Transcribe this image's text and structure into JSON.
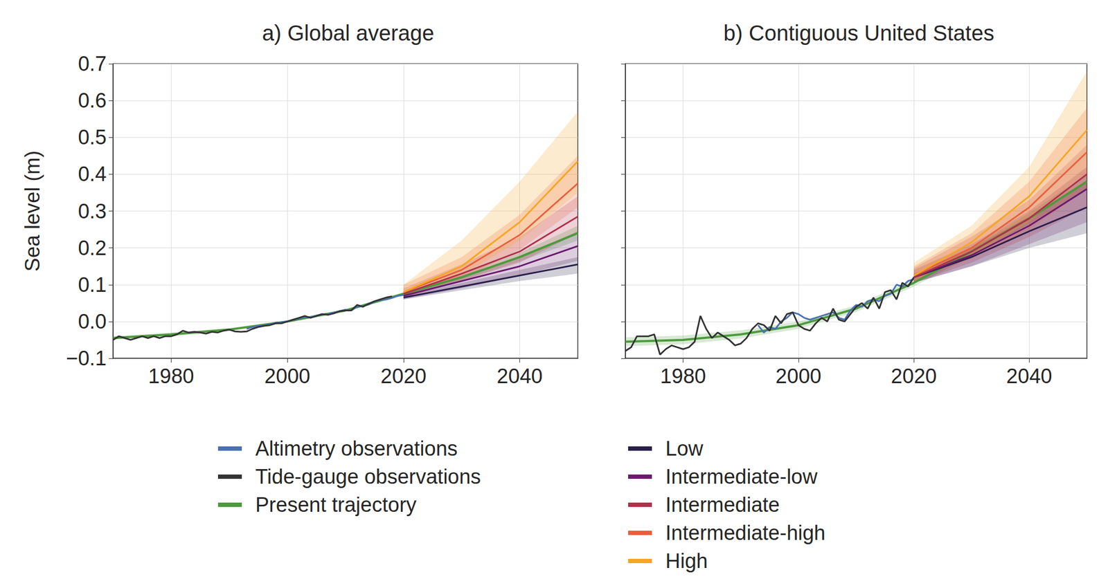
{
  "chart_data": [
    {
      "type": "line",
      "title": "a) Global average",
      "y_label": "Sea level (m)",
      "xlim": [
        1970,
        2050
      ],
      "xticks": [
        1980,
        2000,
        2020,
        2040
      ],
      "ylim": [
        -0.1,
        0.7
      ],
      "yticks": [
        {
          "value": -0.1,
          "label": "−0.1"
        },
        {
          "value": 0,
          "label": "0.0"
        },
        0.1,
        0.2,
        0.3,
        0.4,
        0.5,
        0.6,
        0.7
      ],
      "grid": true,
      "legend": "bottom",
      "series": [
        {
          "name": "Altimetry observations",
          "color": "#4a72b0",
          "x": [
            1993,
            1994,
            1995,
            1996,
            1997,
            1998,
            1999,
            2000,
            2001,
            2002,
            2003,
            2004,
            2005,
            2006,
            2007,
            2008,
            2009,
            2010,
            2011,
            2012,
            2013,
            2014,
            2015,
            2016,
            2017,
            2018,
            2019,
            2020
          ],
          "values": [
            -0.02,
            -0.015,
            -0.012,
            -0.01,
            -0.008,
            -0.003,
            -0.002,
            0.0,
            0.005,
            0.008,
            0.012,
            0.012,
            0.016,
            0.02,
            0.02,
            0.024,
            0.028,
            0.032,
            0.03,
            0.04,
            0.042,
            0.046,
            0.054,
            0.058,
            0.06,
            0.064,
            0.07,
            0.072
          ]
        },
        {
          "name": "Tide-gauge observations",
          "color": "#333333",
          "x": [
            1970,
            1971,
            1972,
            1973,
            1974,
            1975,
            1976,
            1977,
            1978,
            1979,
            1980,
            1981,
            1982,
            1983,
            1984,
            1985,
            1986,
            1987,
            1988,
            1989,
            1990,
            1991,
            1992,
            1993,
            1994,
            1995,
            1996,
            1997,
            1998,
            1999,
            2000,
            2001,
            2002,
            2003,
            2004,
            2005,
            2006,
            2007,
            2008,
            2009,
            2010,
            2011,
            2012,
            2013,
            2014,
            2015,
            2016,
            2017,
            2018
          ],
          "values": [
            -0.05,
            -0.04,
            -0.045,
            -0.05,
            -0.045,
            -0.04,
            -0.045,
            -0.04,
            -0.045,
            -0.04,
            -0.04,
            -0.035,
            -0.025,
            -0.03,
            -0.028,
            -0.03,
            -0.033,
            -0.028,
            -0.03,
            -0.025,
            -0.022,
            -0.027,
            -0.028,
            -0.027,
            -0.02,
            -0.015,
            -0.012,
            -0.01,
            -0.005,
            -0.005,
            0.0,
            0.005,
            0.01,
            0.015,
            0.01,
            0.015,
            0.02,
            0.018,
            0.022,
            0.028,
            0.03,
            0.03,
            0.045,
            0.04,
            0.048,
            0.055,
            0.06,
            0.065,
            0.068
          ]
        },
        {
          "name": "Present trajectory",
          "color": "#4c9a3c",
          "x": [
            1970,
            1980,
            1990,
            2000,
            2010,
            2020,
            2030,
            2040,
            2050
          ],
          "values": [
            -0.045,
            -0.035,
            -0.022,
            0.0,
            0.03,
            0.075,
            0.12,
            0.175,
            0.24
          ],
          "lower": [
            -0.05,
            -0.04,
            -0.026,
            -0.003,
            0.027,
            0.07,
            0.112,
            0.163,
            0.22
          ],
          "upper": [
            -0.04,
            -0.03,
            -0.018,
            0.003,
            0.033,
            0.08,
            0.128,
            0.187,
            0.26
          ]
        },
        {
          "name": "Low",
          "color": "#2a1f4a",
          "x": [
            2020,
            2030,
            2040,
            2050
          ],
          "values": [
            0.065,
            0.095,
            0.125,
            0.155
          ],
          "lower": [
            0.06,
            0.085,
            0.11,
            0.13
          ],
          "upper": [
            0.07,
            0.105,
            0.14,
            0.175
          ]
        },
        {
          "name": "Intermediate-low",
          "color": "#6a1b6e",
          "x": [
            2020,
            2030,
            2040,
            2050
          ],
          "values": [
            0.07,
            0.11,
            0.15,
            0.205
          ],
          "lower": [
            0.06,
            0.09,
            0.125,
            0.165
          ],
          "upper": [
            0.08,
            0.125,
            0.175,
            0.245
          ]
        },
        {
          "name": "Intermediate",
          "color": "#b0304a",
          "x": [
            2020,
            2030,
            2040,
            2050
          ],
          "values": [
            0.075,
            0.13,
            0.19,
            0.285
          ],
          "lower": [
            0.065,
            0.11,
            0.16,
            0.24
          ],
          "upper": [
            0.09,
            0.155,
            0.23,
            0.34
          ]
        },
        {
          "name": "Intermediate-high",
          "color": "#e8603c",
          "x": [
            2020,
            2030,
            2040,
            2050
          ],
          "values": [
            0.08,
            0.14,
            0.235,
            0.375
          ],
          "lower": [
            0.07,
            0.115,
            0.195,
            0.31
          ],
          "upper": [
            0.1,
            0.175,
            0.29,
            0.45
          ]
        },
        {
          "name": "High",
          "color": "#f5a623",
          "x": [
            2020,
            2030,
            2040,
            2050
          ],
          "values": [
            0.08,
            0.15,
            0.27,
            0.435
          ],
          "lower": [
            0.07,
            0.125,
            0.22,
            0.35
          ],
          "upper": [
            0.1,
            0.22,
            0.38,
            0.57
          ]
        }
      ]
    },
    {
      "type": "line",
      "title": "b) Contiguous United States",
      "tick_labels": "x",
      "xlim": [
        1970,
        2050
      ],
      "xticks": [
        1980,
        2000,
        2020,
        2040
      ],
      "ylim": [
        -0.1,
        0.7
      ],
      "yticks": [
        {
          "value": -0.1,
          "label": "−0.1"
        },
        {
          "value": 0,
          "label": "0.0"
        },
        0.1,
        0.2,
        0.3,
        0.4,
        0.5,
        0.6,
        0.7
      ],
      "grid": true,
      "series": [
        {
          "name": "Altimetry observations",
          "color": "#4a72b0",
          "x": [
            1993,
            1994,
            1995,
            1996,
            1997,
            1998,
            1999,
            2000,
            2001,
            2002,
            2003,
            2004,
            2005,
            2006,
            2007,
            2008,
            2009,
            2010,
            2011,
            2012,
            2013,
            2014,
            2015,
            2016,
            2017,
            2018,
            2019,
            2020
          ],
          "values": [
            -0.01,
            -0.03,
            -0.015,
            -0.02,
            0.0,
            0.01,
            0.025,
            0.02,
            0.01,
            0.005,
            0.01,
            0.015,
            0.02,
            0.025,
            0.01,
            0.005,
            0.03,
            0.045,
            0.04,
            0.055,
            0.06,
            0.055,
            0.07,
            0.075,
            0.1,
            0.095,
            0.11,
            0.115
          ]
        },
        {
          "name": "Tide-gauge observations",
          "color": "#333333",
          "x": [
            1970,
            1971,
            1972,
            1973,
            1974,
            1975,
            1976,
            1977,
            1978,
            1979,
            1980,
            1981,
            1982,
            1983,
            1984,
            1985,
            1986,
            1987,
            1988,
            1989,
            1990,
            1991,
            1992,
            1993,
            1994,
            1995,
            1996,
            1997,
            1998,
            1999,
            2000,
            2001,
            2002,
            2003,
            2004,
            2005,
            2006,
            2007,
            2008,
            2009,
            2010,
            2011,
            2012,
            2013,
            2014,
            2015,
            2016,
            2017,
            2018,
            2019,
            2020
          ],
          "values": [
            -0.08,
            -0.07,
            -0.04,
            -0.04,
            -0.04,
            -0.035,
            -0.09,
            -0.075,
            -0.065,
            -0.07,
            -0.075,
            -0.07,
            -0.055,
            0.015,
            -0.02,
            -0.045,
            -0.03,
            -0.04,
            -0.05,
            -0.065,
            -0.06,
            -0.045,
            -0.02,
            -0.005,
            -0.01,
            -0.025,
            0.015,
            -0.005,
            0.02,
            0.025,
            -0.01,
            -0.02,
            -0.025,
            -0.005,
            0.01,
            0.0,
            0.035,
            0.005,
            0.0,
            0.02,
            0.04,
            0.05,
            0.035,
            0.065,
            0.035,
            0.08,
            0.085,
            0.06,
            0.105,
            0.095,
            0.12
          ]
        },
        {
          "name": "Present trajectory",
          "color": "#4c9a3c",
          "x": [
            1970,
            1980,
            1990,
            2000,
            2010,
            2020,
            2030,
            2040,
            2050
          ],
          "values": [
            -0.055,
            -0.05,
            -0.035,
            -0.01,
            0.035,
            0.105,
            0.19,
            0.28,
            0.38
          ],
          "lower": [
            -0.067,
            -0.062,
            -0.046,
            -0.02,
            0.026,
            0.095,
            0.178,
            0.265,
            0.36
          ],
          "upper": [
            -0.043,
            -0.038,
            -0.024,
            0.0,
            0.044,
            0.115,
            0.202,
            0.295,
            0.4
          ]
        },
        {
          "name": "Low",
          "color": "#2a1f4a",
          "x": [
            2020,
            2030,
            2040,
            2050
          ],
          "values": [
            0.12,
            0.175,
            0.245,
            0.31
          ],
          "lower": [
            0.105,
            0.15,
            0.2,
            0.24
          ],
          "upper": [
            0.13,
            0.2,
            0.285,
            0.38
          ]
        },
        {
          "name": "Intermediate-low",
          "color": "#6a1b6e",
          "x": [
            2020,
            2030,
            2040,
            2050
          ],
          "values": [
            0.12,
            0.18,
            0.26,
            0.36
          ],
          "lower": [
            0.105,
            0.15,
            0.21,
            0.27
          ],
          "upper": [
            0.14,
            0.21,
            0.3,
            0.42
          ]
        },
        {
          "name": "Intermediate",
          "color": "#b0304a",
          "x": [
            2020,
            2030,
            2040,
            2050
          ],
          "values": [
            0.12,
            0.19,
            0.28,
            0.4
          ],
          "lower": [
            0.105,
            0.16,
            0.23,
            0.31
          ],
          "upper": [
            0.145,
            0.23,
            0.33,
            0.48
          ]
        },
        {
          "name": "Intermediate-high",
          "color": "#e8603c",
          "x": [
            2020,
            2030,
            2040,
            2050
          ],
          "values": [
            0.125,
            0.2,
            0.31,
            0.46
          ],
          "lower": [
            0.11,
            0.17,
            0.25,
            0.36
          ],
          "upper": [
            0.15,
            0.24,
            0.38,
            0.58
          ]
        },
        {
          "name": "High",
          "color": "#f5a623",
          "x": [
            2020,
            2030,
            2040,
            2050
          ],
          "values": [
            0.125,
            0.215,
            0.34,
            0.52
          ],
          "lower": [
            0.11,
            0.18,
            0.27,
            0.4
          ],
          "upper": [
            0.16,
            0.26,
            0.42,
            0.68
          ]
        }
      ]
    }
  ]
}
